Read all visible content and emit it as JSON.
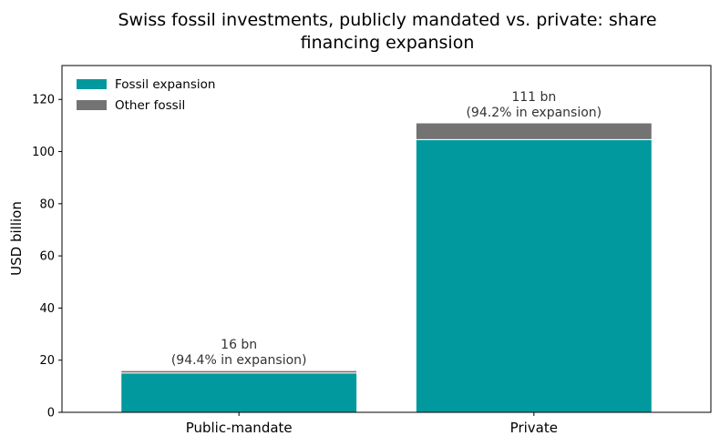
{
  "chart_data": {
    "type": "bar",
    "stacked": true,
    "title": "Swiss fossil investments, publicly mandated vs. private: share financing expansion",
    "title_lines": [
      "Swiss fossil investments, publicly mandated vs. private: share",
      "financing expansion"
    ],
    "xlabel": "",
    "ylabel": "USD billion",
    "ylim": [
      0,
      133
    ],
    "yticks": [
      0,
      20,
      40,
      60,
      80,
      100,
      120
    ],
    "grid": false,
    "legend_position": "top-left",
    "categories": [
      "Public-mandate",
      "Private"
    ],
    "series": [
      {
        "name": "Fossil expansion",
        "color": "#02999E",
        "values": [
          15.1,
          104.6
        ]
      },
      {
        "name": "Other fossil",
        "color": "#737373",
        "values": [
          0.9,
          6.4
        ]
      }
    ],
    "bar_labels": [
      {
        "total": "16 bn",
        "share": "(94.4% in expansion)"
      },
      {
        "total": "111 bn",
        "share": "(94.2% in expansion)"
      }
    ]
  }
}
